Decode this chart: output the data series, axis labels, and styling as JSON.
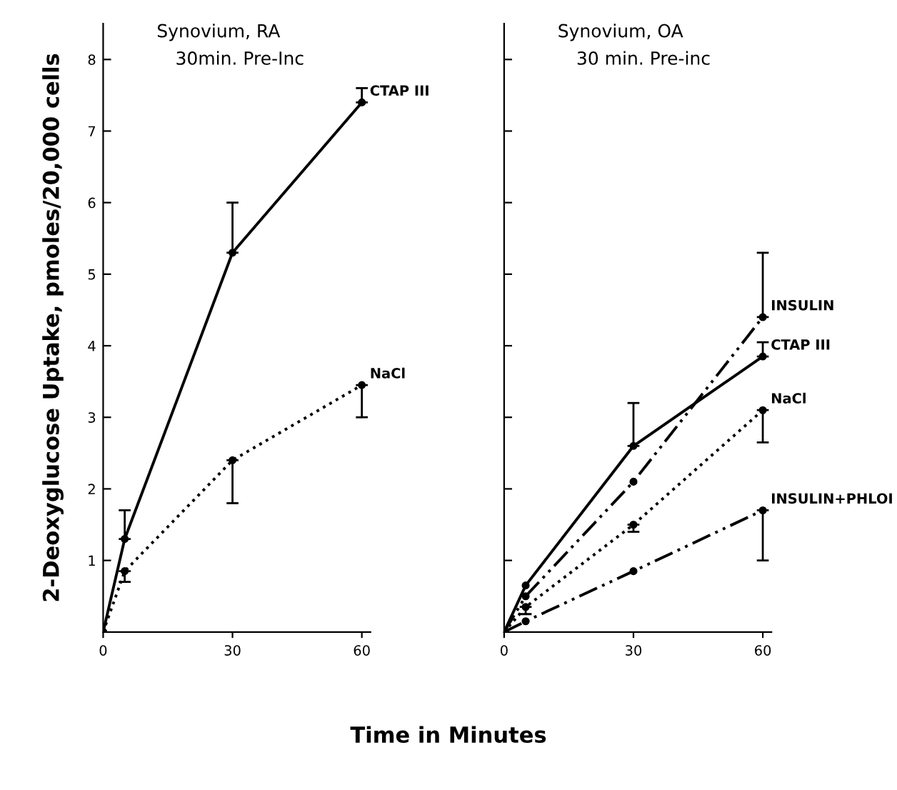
{
  "chart_data": [
    {
      "type": "line",
      "title": "Synovium, RA",
      "subtitle": "30min. Pre-Inc",
      "ylabel": "2-Deoxyglucose Uptake, pmoles/20,000 cells",
      "xlabel": "Time in Minutes",
      "xlim": [
        0,
        62
      ],
      "xticks": [
        0,
        30,
        60
      ],
      "ylim": [
        0,
        8.5
      ],
      "yticks": [
        1,
        2,
        3,
        4,
        5,
        6,
        7,
        8
      ],
      "grid": false,
      "legend": false,
      "marker": "circle",
      "series": [
        {
          "name": "CTAP III",
          "color": "#000000",
          "line_style": "solid",
          "x": [
            0,
            5,
            30,
            60
          ],
          "values": [
            0,
            1.3,
            5.3,
            7.4
          ],
          "errors": [
            null,
            [
              1.3,
              1.7
            ],
            [
              5.3,
              6.0
            ],
            [
              7.4,
              7.6
            ]
          ]
        },
        {
          "name": "NaCl",
          "color": "#000000",
          "line_style": "dotted",
          "x": [
            0,
            5,
            30,
            60
          ],
          "values": [
            0,
            0.85,
            2.4,
            3.45
          ],
          "errors": [
            null,
            [
              0.7,
              0.85
            ],
            [
              1.8,
              2.4
            ],
            [
              3.0,
              3.45
            ]
          ]
        }
      ]
    },
    {
      "type": "line",
      "title": "Synovium, OA",
      "subtitle": "30 min. Pre-inc",
      "xlim": [
        0,
        62
      ],
      "xticks": [
        0,
        30,
        60
      ],
      "ylim": [
        0,
        8.5
      ],
      "yticks": [
        1,
        2,
        3,
        4,
        5,
        6,
        7,
        8
      ],
      "tick_labels": "x",
      "grid": false,
      "legend": false,
      "marker": "circle",
      "series": [
        {
          "name": "INSULIN",
          "color": "#000000",
          "line_style": "dashdot",
          "x": [
            0,
            5,
            30,
            60
          ],
          "values": [
            0,
            0.5,
            2.1,
            4.4
          ],
          "errors": [
            null,
            null,
            null,
            [
              4.4,
              5.3
            ]
          ]
        },
        {
          "name": "CTAP III",
          "color": "#000000",
          "line_style": "solid",
          "x": [
            0,
            5,
            30,
            60
          ],
          "values": [
            0,
            0.65,
            2.6,
            3.85
          ],
          "errors": [
            null,
            null,
            [
              2.6,
              3.2
            ],
            [
              3.85,
              4.05
            ]
          ]
        },
        {
          "name": "NaCl",
          "color": "#000000",
          "line_style": "dotted",
          "x": [
            0,
            5,
            30,
            60
          ],
          "values": [
            0,
            0.35,
            1.5,
            3.1
          ],
          "errors": [
            null,
            [
              0.25,
              0.35
            ],
            [
              1.4,
              1.5
            ],
            [
              2.65,
              3.1
            ]
          ]
        },
        {
          "name": "INSULIN+PHLOI",
          "color": "#000000",
          "line_style": "dashdot",
          "x": [
            0,
            5,
            30,
            60
          ],
          "values": [
            0,
            0.15,
            0.85,
            1.7
          ],
          "errors": [
            null,
            null,
            null,
            [
              1.0,
              1.7
            ]
          ]
        }
      ]
    }
  ]
}
